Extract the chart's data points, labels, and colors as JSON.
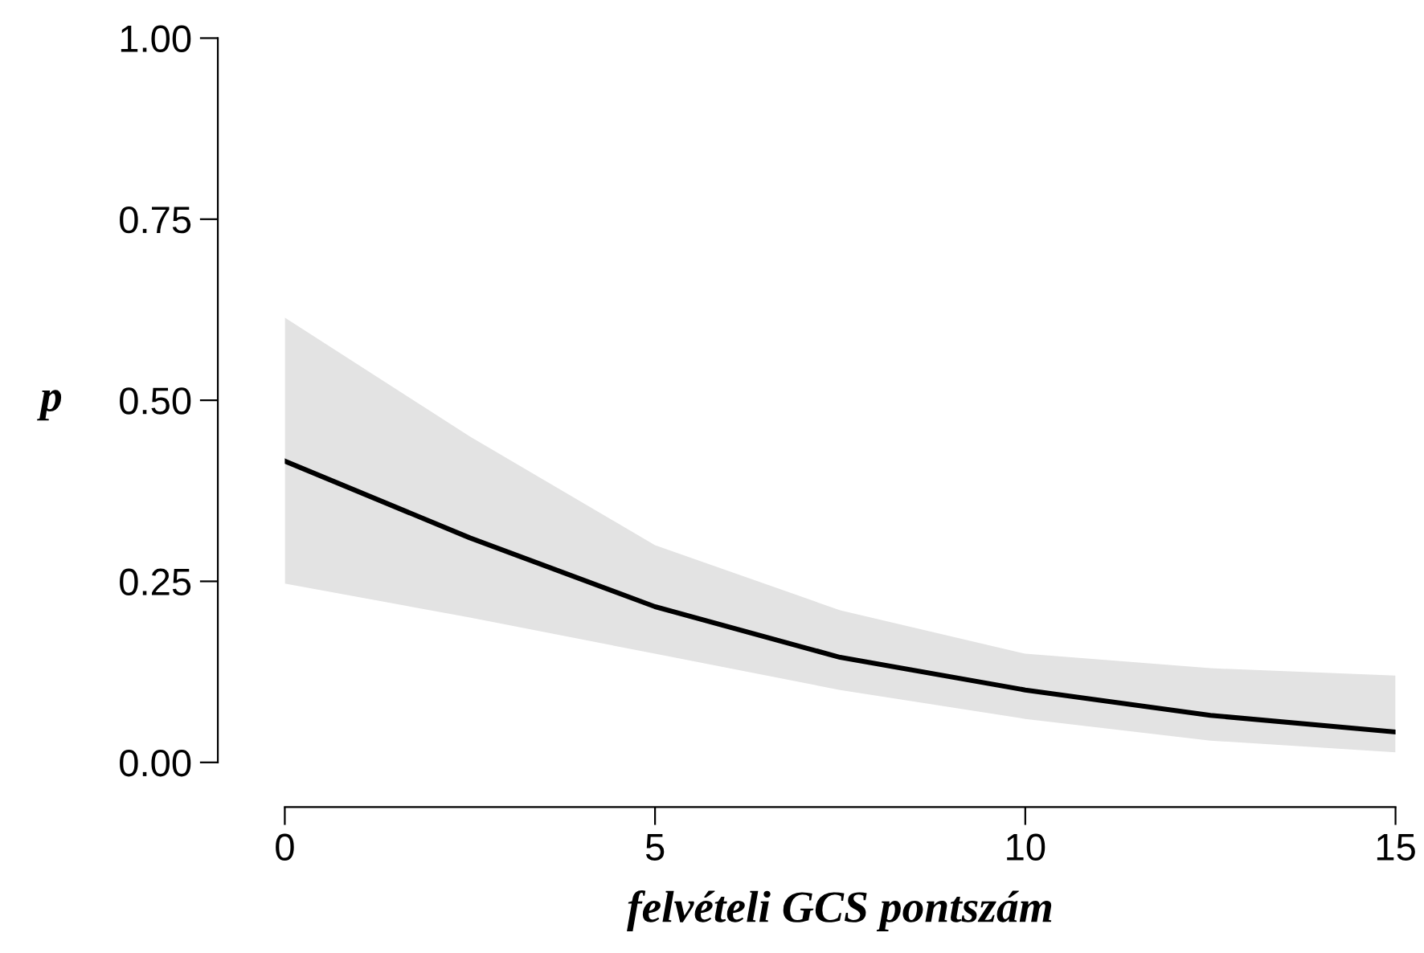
{
  "chart_data": {
    "type": "line",
    "xlabel": "felvételi GCS pontszám",
    "ylabel": "p",
    "x": [
      0,
      2.5,
      5,
      7.5,
      10,
      12.5,
      15
    ],
    "series": [
      {
        "color": "#000000",
        "values": [
          0.416,
          0.31,
          0.215,
          0.145,
          0.1,
          0.065,
          0.042
        ],
        "lower": [
          0.247,
          0.2,
          0.15,
          0.1,
          0.06,
          0.03,
          0.014
        ],
        "upper": [
          0.614,
          0.45,
          0.3,
          0.21,
          0.15,
          0.13,
          0.12
        ]
      }
    ],
    "xlim": [
      0,
      15
    ],
    "xticks": [
      0,
      5,
      10,
      15
    ],
    "ylim": [
      0,
      1
    ],
    "yticks": [
      {
        "value": 0,
        "label": "0.00"
      },
      {
        "value": 0.25,
        "label": "0.25"
      },
      {
        "value": 0.5,
        "label": "0.50"
      },
      {
        "value": 0.75,
        "label": "0.75"
      },
      {
        "value": 1,
        "label": "1.00"
      }
    ],
    "grid": false,
    "legend": false,
    "line_style": "solid",
    "marker": "none"
  }
}
